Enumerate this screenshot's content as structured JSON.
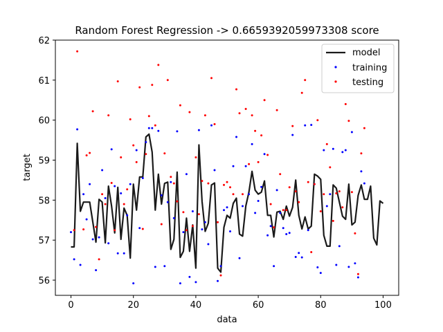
{
  "chart_data": {
    "type": "line",
    "title": "Random Forest Regression -> 0.6659392059973308 score",
    "xlabel": "data",
    "ylabel": "target",
    "xlim": [
      -5,
      105
    ],
    "ylim": [
      55.62,
      62
    ],
    "xticks": [
      0,
      20,
      40,
      60,
      80,
      100
    ],
    "yticks": [
      56,
      57,
      58,
      59,
      60,
      61,
      62
    ],
    "grid": false,
    "legend_position": "top-right",
    "series": [
      {
        "name": "model",
        "kind": "line",
        "color": "#1a1a1a",
        "x": [
          0,
          1,
          2,
          3,
          4,
          5,
          6,
          7,
          8,
          9,
          10,
          11,
          12,
          13,
          14,
          15,
          16,
          17,
          18,
          19,
          20,
          21,
          22,
          23,
          24,
          25,
          26,
          27,
          28,
          29,
          30,
          31,
          32,
          33,
          34,
          35,
          36,
          37,
          38,
          39,
          40,
          41,
          42,
          43,
          44,
          45,
          46,
          47,
          48,
          49,
          50,
          51,
          52,
          53,
          54,
          55,
          56,
          57,
          58,
          59,
          60,
          61,
          62,
          63,
          64,
          65,
          66,
          67,
          68,
          69,
          70,
          71,
          72,
          73,
          74,
          75,
          76,
          77,
          78,
          79,
          80,
          81,
          82,
          83,
          84,
          85,
          86,
          87,
          88,
          89,
          90,
          91,
          92,
          93,
          94,
          95,
          96,
          97,
          98,
          99,
          100
        ],
        "y": [
          56.83,
          56.83,
          59.42,
          57.72,
          57.95,
          57.95,
          57.95,
          57.45,
          56.95,
          58.02,
          57.95,
          56.93,
          58.35,
          57.85,
          57.18,
          58.32,
          57.02,
          57.8,
          57.62,
          56.55,
          58.4,
          57.75,
          58.58,
          58.58,
          59.58,
          59.65,
          59.2,
          57.75,
          58.65,
          57.9,
          58.42,
          58.45,
          56.77,
          57.02,
          58.7,
          56.57,
          56.72,
          57.55,
          56.72,
          57.38,
          56.3,
          59.38,
          57.97,
          57.22,
          57.42,
          58.38,
          58.43,
          56.3,
          56.2,
          57.32,
          57.62,
          57.55,
          57.92,
          58.05,
          57.15,
          57.1,
          57.85,
          58.2,
          58.72,
          58.25,
          58.15,
          58.2,
          58.48,
          57.62,
          57.62,
          57.08,
          57.7,
          57.72,
          57.52,
          57.85,
          57.6,
          57.82,
          58.5,
          57.62,
          57.28,
          57.58,
          57.28,
          57.35,
          58.65,
          58.6,
          58.52,
          57.12,
          56.85,
          56.85,
          58.38,
          58.3,
          57.95,
          57.6,
          57.52,
          58.4,
          57.38,
          57.45,
          58.12,
          58.38,
          58.02,
          58.02,
          58.35,
          57.05,
          56.88,
          57.98,
          57.92
        ]
      },
      {
        "name": "training",
        "kind": "scatter",
        "color": "#0000ff",
        "points": [
          [
            0,
            57.2
          ],
          [
            1,
            56.52
          ],
          [
            2,
            59.77
          ],
          [
            3,
            56.38
          ],
          [
            4,
            58.15
          ],
          [
            5,
            57.52
          ],
          [
            6,
            58.4
          ],
          [
            7,
            57.02
          ],
          [
            8,
            56.25
          ],
          [
            9,
            57.07
          ],
          [
            10,
            58.75
          ],
          [
            11,
            58.05
          ],
          [
            12,
            56.92
          ],
          [
            13,
            59.27
          ],
          [
            14,
            58.35
          ],
          [
            15,
            56.67
          ],
          [
            16,
            58.17
          ],
          [
            17,
            56.67
          ],
          [
            18,
            57.62
          ],
          [
            19,
            58.4
          ],
          [
            20,
            55.92
          ],
          [
            21,
            59.25
          ],
          [
            22,
            57.3
          ],
          [
            23,
            58.55
          ],
          [
            24,
            59.45
          ],
          [
            25,
            59.8
          ],
          [
            26,
            59.8
          ],
          [
            27,
            56.33
          ],
          [
            28,
            59.73
          ],
          [
            29,
            58.12
          ],
          [
            30,
            56.35
          ],
          [
            31,
            57.95
          ],
          [
            32,
            58.45
          ],
          [
            33,
            57.55
          ],
          [
            34,
            59.72
          ],
          [
            35,
            55.92
          ],
          [
            36,
            57.2
          ],
          [
            37,
            58.65
          ],
          [
            38,
            56.08
          ],
          [
            39,
            57.72
          ],
          [
            40,
            55.95
          ],
          [
            41,
            59.75
          ],
          [
            42,
            57.27
          ],
          [
            43,
            57.45
          ],
          [
            44,
            56.9
          ],
          [
            45,
            59.87
          ],
          [
            46,
            58.75
          ],
          [
            47,
            55.98
          ],
          [
            48,
            56.35
          ],
          [
            49,
            57.75
          ],
          [
            50,
            57.82
          ],
          [
            51,
            57.22
          ],
          [
            52,
            58.85
          ],
          [
            53,
            59.58
          ],
          [
            54,
            56.55
          ],
          [
            55,
            57.85
          ],
          [
            56,
            58.85
          ],
          [
            57,
            58.15
          ],
          [
            58,
            59.4
          ],
          [
            59,
            57.68
          ],
          [
            60,
            57.98
          ],
          [
            61,
            58.33
          ],
          [
            62,
            59.15
          ],
          [
            63,
            57.12
          ],
          [
            64,
            57.35
          ],
          [
            65,
            56.35
          ],
          [
            66,
            58.25
          ],
          [
            67,
            57.68
          ],
          [
            68,
            57.3
          ],
          [
            69,
            57.15
          ],
          [
            70,
            57.18
          ],
          [
            71,
            59.63
          ],
          [
            72,
            56.58
          ],
          [
            73,
            56.68
          ],
          [
            74,
            56.57
          ],
          [
            75,
            59.87
          ],
          [
            76,
            57.25
          ],
          [
            77,
            59.88
          ],
          [
            78,
            58.4
          ],
          [
            79,
            56.32
          ],
          [
            80,
            56.18
          ],
          [
            81,
            59.25
          ],
          [
            82,
            57.85
          ],
          [
            83,
            58.15
          ],
          [
            84,
            59.28
          ],
          [
            85,
            56.38
          ],
          [
            86,
            56.85
          ],
          [
            87,
            59.2
          ],
          [
            88,
            59.25
          ],
          [
            89,
            56.33
          ],
          [
            90,
            59.7
          ],
          [
            91,
            56.42
          ],
          [
            92,
            56.07
          ],
          [
            93,
            58.72
          ],
          [
            94,
            58.42
          ]
        ]
      },
      {
        "name": "testing",
        "kind": "scatter",
        "color": "#ff0000",
        "points": [
          [
            1,
            57.25
          ],
          [
            2,
            61.72
          ],
          [
            4,
            57.27
          ],
          [
            5,
            59.12
          ],
          [
            6,
            59.18
          ],
          [
            7,
            60.22
          ],
          [
            8,
            57.33
          ],
          [
            9,
            56.52
          ],
          [
            10,
            58.15
          ],
          [
            11,
            57.9
          ],
          [
            12,
            60.12
          ],
          [
            13,
            58.43
          ],
          [
            14,
            57.25
          ],
          [
            15,
            60.97
          ],
          [
            16,
            59.07
          ],
          [
            17,
            57.9
          ],
          [
            18,
            58.27
          ],
          [
            19,
            60.02
          ],
          [
            20,
            59.37
          ],
          [
            21,
            58.95
          ],
          [
            22,
            60.82
          ],
          [
            23,
            57.28
          ],
          [
            24,
            59.15
          ],
          [
            25,
            60.1
          ],
          [
            26,
            60.88
          ],
          [
            27,
            59.87
          ],
          [
            28,
            61.38
          ],
          [
            29,
            57.4
          ],
          [
            30,
            59.17
          ],
          [
            31,
            61.0
          ],
          [
            32,
            58.58
          ],
          [
            33,
            58.42
          ],
          [
            34,
            57.97
          ],
          [
            35,
            60.37
          ],
          [
            36,
            57.7
          ],
          [
            37,
            57.25
          ],
          [
            38,
            60.2
          ],
          [
            39,
            57.35
          ],
          [
            40,
            59.07
          ],
          [
            41,
            57.65
          ],
          [
            42,
            58.48
          ],
          [
            43,
            60.12
          ],
          [
            44,
            58.42
          ],
          [
            45,
            61.05
          ],
          [
            46,
            59.9
          ],
          [
            47,
            57.45
          ],
          [
            48,
            56.12
          ],
          [
            49,
            58.38
          ],
          [
            50,
            58.45
          ],
          [
            51,
            58.32
          ],
          [
            52,
            58.15
          ],
          [
            53,
            60.77
          ],
          [
            54,
            60.17
          ],
          [
            55,
            58.15
          ],
          [
            56,
            60.28
          ],
          [
            57,
            58.9
          ],
          [
            58,
            60.12
          ],
          [
            59,
            59.73
          ],
          [
            60,
            58.95
          ],
          [
            61,
            59.62
          ],
          [
            62,
            60.5
          ],
          [
            63,
            59.13
          ],
          [
            64,
            57.9
          ],
          [
            65,
            57.32
          ],
          [
            66,
            60.25
          ],
          [
            67,
            58.65
          ],
          [
            68,
            57.75
          ],
          [
            69,
            57.75
          ],
          [
            70,
            58.32
          ],
          [
            71,
            59.85
          ],
          [
            72,
            58.22
          ],
          [
            73,
            57.95
          ],
          [
            74,
            60.68
          ],
          [
            75,
            61.0
          ],
          [
            76,
            58.45
          ],
          [
            77,
            56.7
          ],
          [
            78,
            58.4
          ],
          [
            79,
            60.0
          ],
          [
            80,
            57.72
          ],
          [
            81,
            58.15
          ],
          [
            82,
            59.4
          ],
          [
            83,
            58.82
          ],
          [
            84,
            57.48
          ],
          [
            85,
            58.17
          ],
          [
            86,
            58.22
          ],
          [
            87,
            57.82
          ],
          [
            88,
            60.4
          ],
          [
            89,
            59.98
          ],
          [
            90,
            58.2
          ],
          [
            91,
            57.17
          ],
          [
            92,
            56.15
          ],
          [
            93,
            59.17
          ],
          [
            94,
            59.8
          ]
        ]
      }
    ]
  },
  "legend": {
    "items": [
      {
        "label": "model",
        "color": "#1a1a1a",
        "marker": "line"
      },
      {
        "label": "training",
        "color": "#0000ff",
        "marker": "dot"
      },
      {
        "label": "testing",
        "color": "#ff0000",
        "marker": "dot"
      }
    ]
  }
}
